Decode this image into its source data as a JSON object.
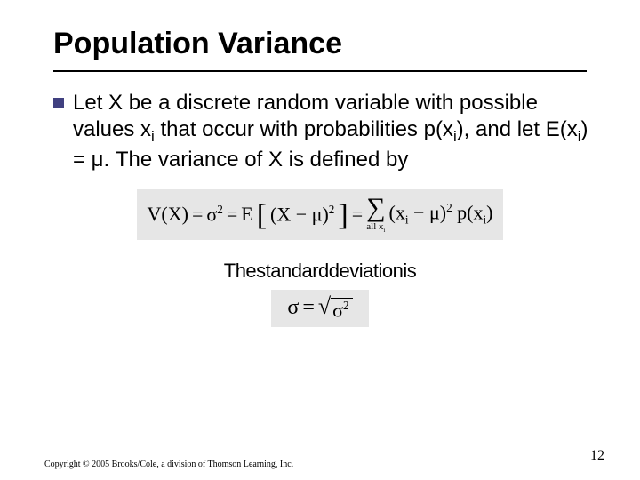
{
  "title": "Population Variance",
  "paragraph": {
    "pre": "Let X be a discrete random variable with possible  values x",
    "sub1": "i",
    "mid1": " that occur with probabilities p(x",
    "sub2": "i",
    "mid2": "), and let E(x",
    "sub3": "i",
    "mid3": ") = μ.  The variance of X is defined by"
  },
  "formula1": {
    "lhs1": "V(X)",
    "eq": "=",
    "lhs2a": "σ",
    "lhs2sup": "2",
    "lhs3": "E",
    "inner_open": "(X",
    "inner_minus": "−",
    "inner_mu": "μ)",
    "inner_sup": "2",
    "sum_under": "all x",
    "sum_under_sub": "i",
    "rhs_open": "(x",
    "rhs_sub1": "i",
    "rhs_minus": "−",
    "rhs_mu": "μ)",
    "rhs_sup": "2",
    "rhs_p": "p(x",
    "rhs_sub2": "i",
    "rhs_close": ")"
  },
  "std_text": "Thestandarddeviationis",
  "formula2": {
    "sigma": "σ",
    "eq": "=",
    "rad_sigma": "σ",
    "rad_sup": "2"
  },
  "copyright": "Copyright © 2005 Brooks/Cole, a division of Thomson Learning, Inc.",
  "pagenum": "12",
  "colors": {
    "bullet": "#404080",
    "formula_bg": "#e6e6e6",
    "text": "#000000",
    "background": "#ffffff"
  },
  "typography": {
    "title_fontsize": 34,
    "body_fontsize": 24,
    "formula_fontsize": 22,
    "copyright_fontsize": 10,
    "pagenum_fontsize": 16
  }
}
